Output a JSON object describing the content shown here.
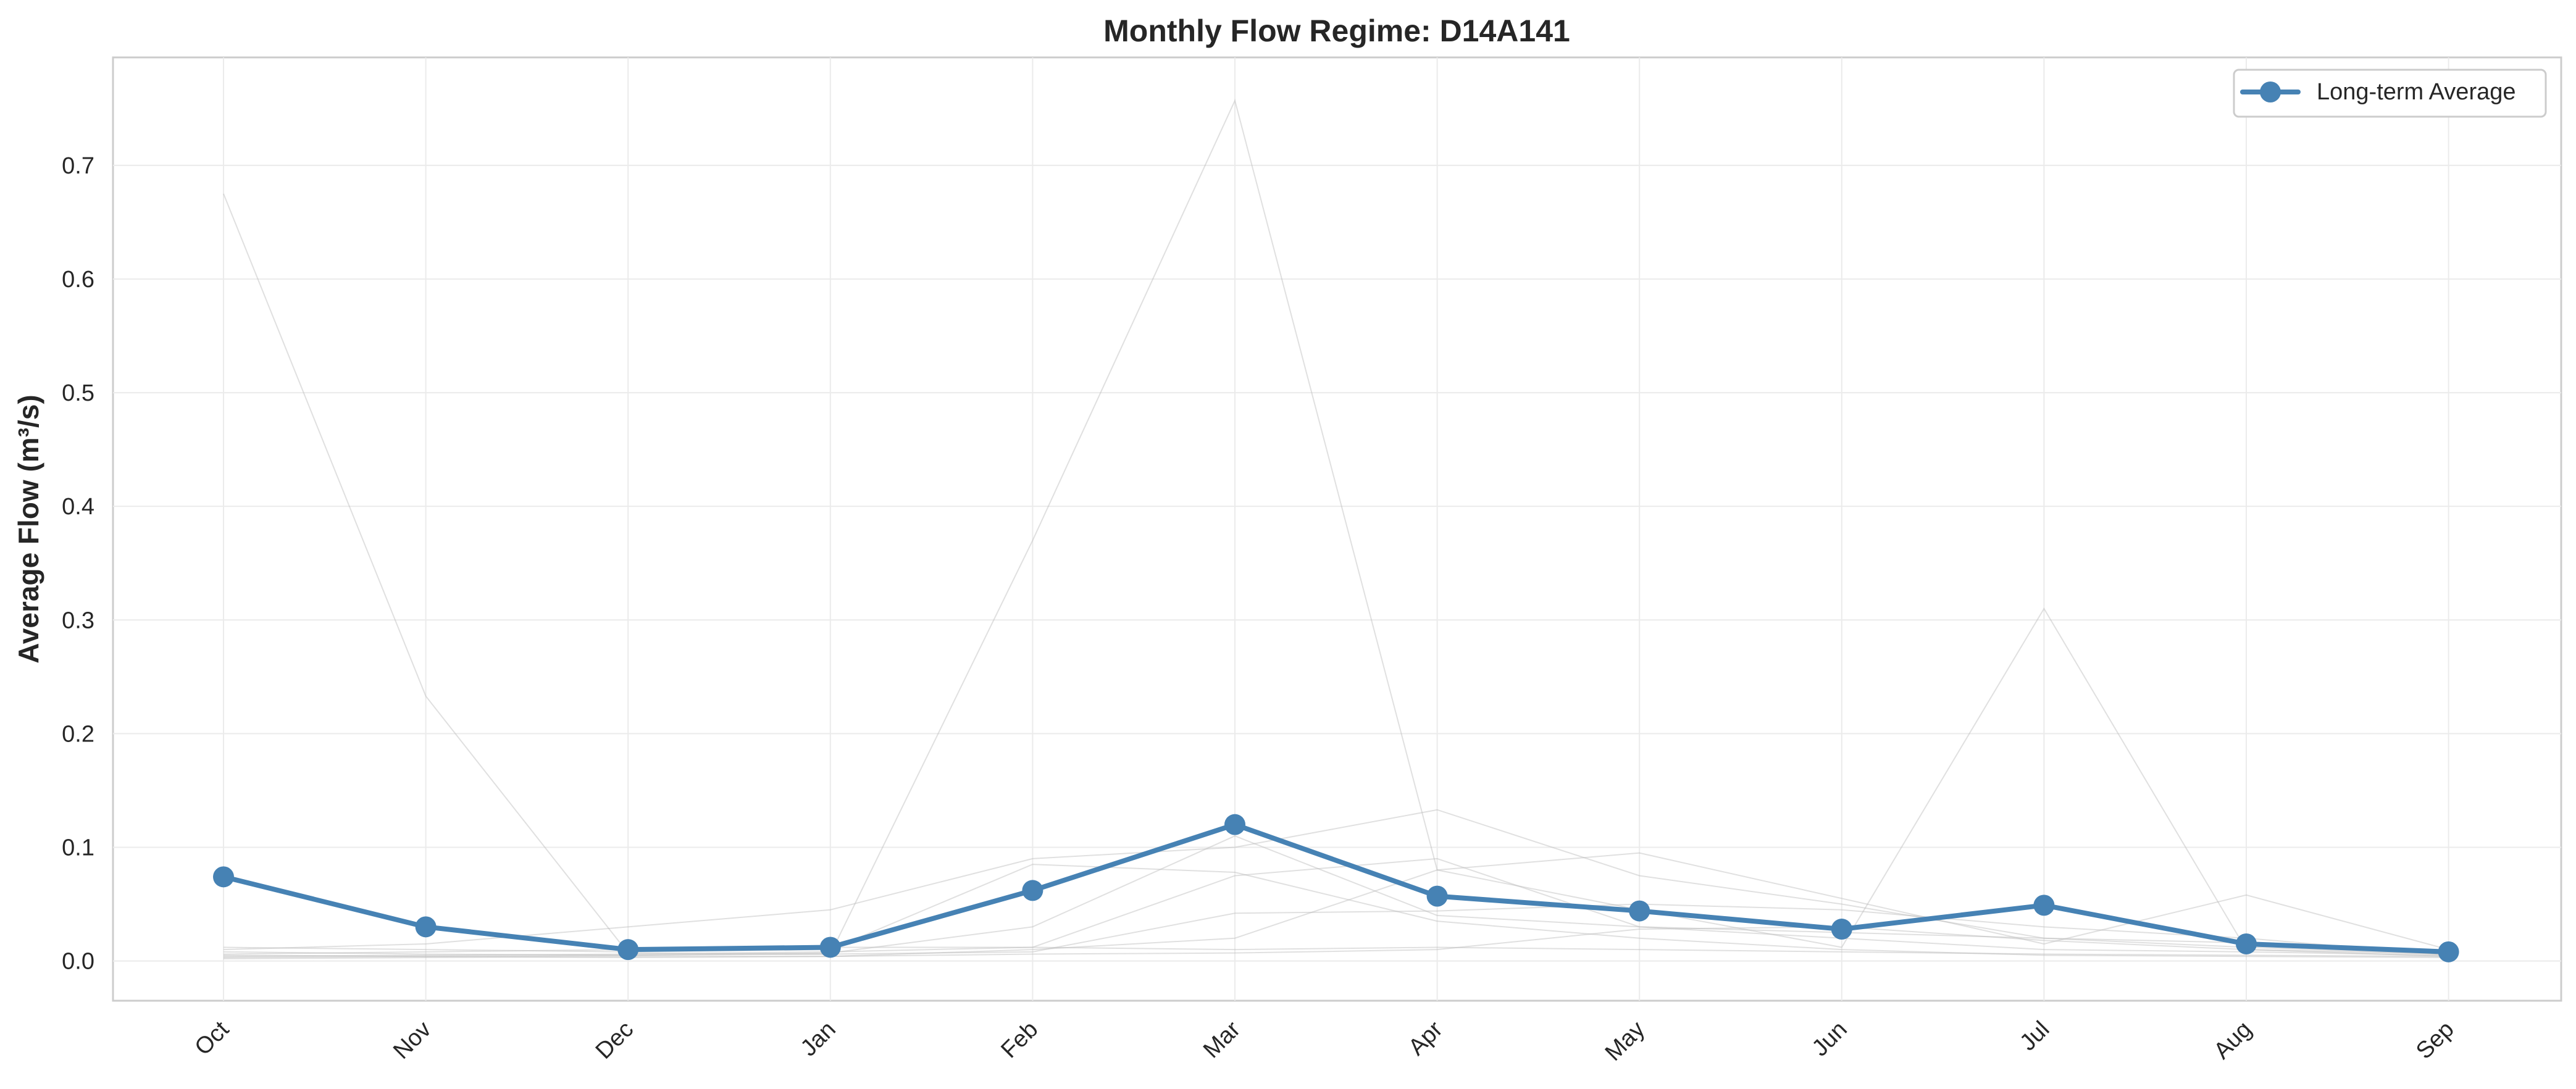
{
  "chart_data": {
    "type": "line",
    "title": "Monthly Flow Regime: D14A141",
    "xlabel": "",
    "ylabel": "Average Flow (m³/s)",
    "categories": [
      "Oct",
      "Nov",
      "Dec",
      "Jan",
      "Feb",
      "Mar",
      "Apr",
      "May",
      "Jun",
      "Jul",
      "Aug",
      "Sep"
    ],
    "ylim": [
      -0.035,
      0.795
    ],
    "yticks": [
      0.0,
      0.1,
      0.2,
      0.3,
      0.4,
      0.5,
      0.6,
      0.7
    ],
    "ytick_labels": [
      "0.0",
      "0.1",
      "0.2",
      "0.3",
      "0.4",
      "0.5",
      "0.6",
      "0.7"
    ],
    "grid": true,
    "legend_position": "top-right",
    "series": [
      {
        "name": "Long-term Average",
        "color": "#4682B4",
        "marker": "circle",
        "values": [
          0.074,
          0.03,
          0.01,
          0.012,
          0.062,
          0.12,
          0.057,
          0.044,
          0.028,
          0.049,
          0.015,
          0.008
        ]
      }
    ],
    "background_lines": {
      "color": "#BBBBBB",
      "values": [
        [
          0.675,
          0.233,
          0.007,
          0.006,
          0.37,
          0.757,
          0.08,
          0.045,
          0.012,
          0.31,
          0.01,
          0.006
        ],
        [
          0.01,
          0.015,
          0.03,
          0.045,
          0.09,
          0.1,
          0.133,
          0.075,
          0.05,
          0.02,
          0.016,
          0.008
        ],
        [
          0.005,
          0.004,
          0.003,
          0.004,
          0.01,
          0.02,
          0.08,
          0.095,
          0.055,
          0.015,
          0.058,
          0.01
        ],
        [
          0.008,
          0.006,
          0.005,
          0.007,
          0.03,
          0.11,
          0.04,
          0.03,
          0.025,
          0.02,
          0.012,
          0.006
        ],
        [
          0.004,
          0.005,
          0.006,
          0.008,
          0.012,
          0.075,
          0.09,
          0.03,
          0.02,
          0.01,
          0.008,
          0.005
        ],
        [
          0.003,
          0.004,
          0.005,
          0.006,
          0.008,
          0.042,
          0.044,
          0.05,
          0.045,
          0.03,
          0.02,
          0.005
        ],
        [
          0.012,
          0.01,
          0.008,
          0.01,
          0.085,
          0.078,
          0.035,
          0.02,
          0.01,
          0.005,
          0.004,
          0.003
        ],
        [
          0.002,
          0.003,
          0.004,
          0.004,
          0.006,
          0.007,
          0.01,
          0.028,
          0.03,
          0.018,
          0.01,
          0.004
        ],
        [
          0.006,
          0.008,
          0.01,
          0.012,
          0.012,
          0.01,
          0.012,
          0.01,
          0.008,
          0.006,
          0.005,
          0.004
        ]
      ]
    }
  }
}
